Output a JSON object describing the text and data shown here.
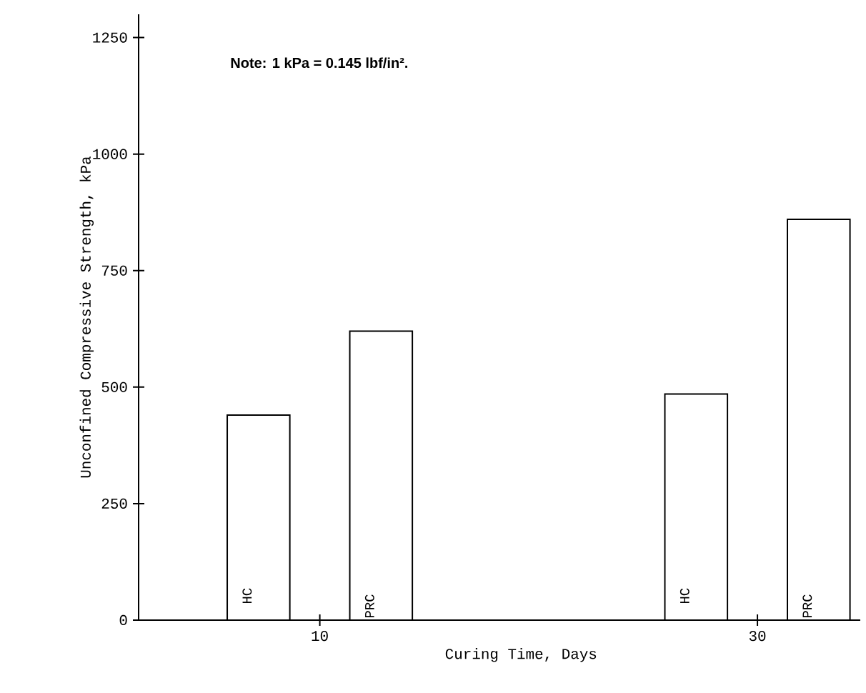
{
  "chart_data": {
    "type": "bar",
    "xlabel": "Curing Time, Days",
    "ylabel": "Unconfined Compressive Strength, kPa",
    "annotations": [
      "Note:  1 kPa = 0.145 lbf/in²."
    ],
    "categories": [
      "10",
      "30"
    ],
    "series": [
      {
        "name": "HC",
        "color": "#ffffff",
        "values": [
          440,
          485
        ]
      },
      {
        "name": "PRC",
        "color": "#ffffff",
        "values": [
          620,
          860
        ]
      }
    ],
    "ylim": [
      0,
      1300
    ],
    "yticks": [
      0,
      250,
      500,
      750,
      1000,
      1250
    ],
    "grid": false,
    "legend": false
  }
}
